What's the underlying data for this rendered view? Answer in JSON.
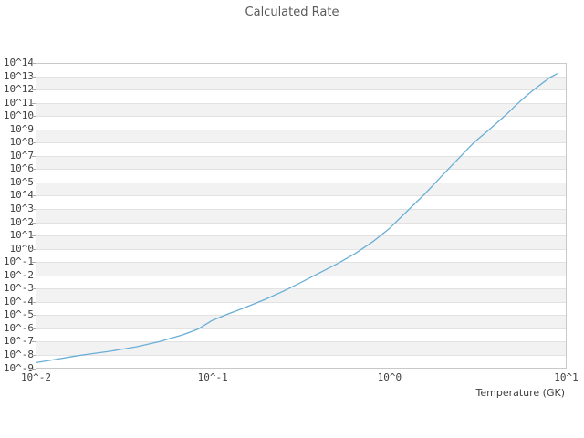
{
  "title": "Calculated Rate",
  "chart_data": {
    "type": "line",
    "title": "Calculated Rate",
    "xlabel": "Temperature (GK)",
    "ylabel": "",
    "x_scale": "log10",
    "y_scale": "log10",
    "x_axis_unit": "GK",
    "x_exponent_range": [
      -2,
      1
    ],
    "y_exponent_range": [
      -9,
      14
    ],
    "x_tick_exponents": [
      -2,
      -1,
      0,
      1
    ],
    "x_tick_labels": [
      "10^-2",
      "10^-1",
      "10^0",
      "10^1"
    ],
    "y_tick_exponents": [
      14,
      13,
      12,
      11,
      10,
      9,
      8,
      7,
      6,
      5,
      4,
      3,
      2,
      1,
      0,
      -1,
      -2,
      -3,
      -4,
      -5,
      -6,
      -7,
      -8,
      -9
    ],
    "y_tick_labels": [
      "10^14",
      "10^13",
      "10^12",
      "10^11",
      "10^10",
      "10^9",
      "10^8",
      "10^7",
      "10^6",
      "10^5",
      "10^4",
      "10^3",
      "10^2",
      "10^1",
      "10^0",
      "10^-1",
      "10^-2",
      "10^-3",
      "10^-4",
      "10^-5",
      "10^-6",
      "10^-7",
      "10^-8",
      "10^-9"
    ],
    "grid": "horizontal-bands",
    "legend": "none",
    "band_colors": [
      "#ffffff",
      "#f2f2f2"
    ],
    "gridline_color": "#e2e2e2",
    "border_color": "#c9c9c9",
    "line_color": "#6aaed6",
    "series": [
      {
        "name": "calculated-rate",
        "points_log10T_log10rate": [
          [
            -2.0,
            -8.59
          ],
          [
            -1.89,
            -8.35
          ],
          [
            -1.79,
            -8.12
          ],
          [
            -1.7,
            -7.94
          ],
          [
            -1.58,
            -7.73
          ],
          [
            -1.52,
            -7.59
          ],
          [
            -1.43,
            -7.39
          ],
          [
            -1.3,
            -7.0
          ],
          [
            -1.17,
            -6.5
          ],
          [
            -1.08,
            -6.05
          ],
          [
            -1.0,
            -5.4
          ],
          [
            -0.91,
            -4.91
          ],
          [
            -0.81,
            -4.4
          ],
          [
            -0.7,
            -3.81
          ],
          [
            -0.6,
            -3.21
          ],
          [
            -0.52,
            -2.69
          ],
          [
            -0.4,
            -1.86
          ],
          [
            -0.3,
            -1.18
          ],
          [
            -0.19,
            -0.35
          ],
          [
            -0.09,
            0.55
          ],
          [
            0.0,
            1.5
          ],
          [
            0.1,
            2.8
          ],
          [
            0.2,
            4.1
          ],
          [
            0.25,
            4.8
          ],
          [
            0.3,
            5.5
          ],
          [
            0.35,
            6.2
          ],
          [
            0.4,
            6.9
          ],
          [
            0.48,
            8.0
          ],
          [
            0.56,
            8.9
          ],
          [
            0.62,
            9.6
          ],
          [
            0.67,
            10.2
          ],
          [
            0.72,
            10.85
          ],
          [
            0.77,
            11.45
          ],
          [
            0.82,
            12.0
          ],
          [
            0.87,
            12.5
          ],
          [
            0.91,
            12.9
          ],
          [
            0.95,
            13.18
          ]
        ]
      }
    ]
  }
}
